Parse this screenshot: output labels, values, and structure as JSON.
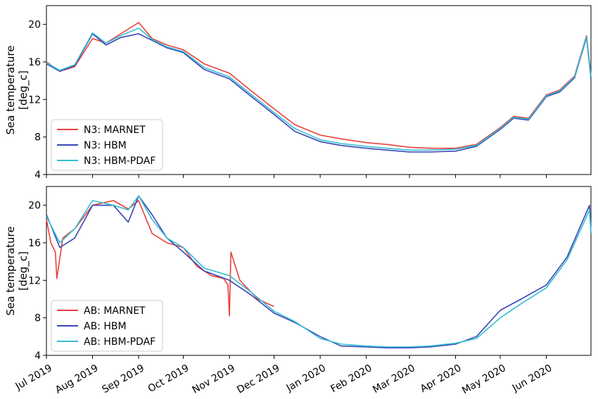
{
  "chart_data": [
    {
      "type": "line",
      "ylabel": [
        "Sea temperature",
        "[deg_c]"
      ],
      "ylim": [
        4,
        22
      ],
      "yticks": [
        4,
        8,
        12,
        16,
        20
      ],
      "xlim": [
        "2019-07-01",
        "2020-07-01"
      ],
      "xticks": [
        "2019-07-01",
        "2019-08-01",
        "2019-09-01",
        "2019-10-01",
        "2019-11-01",
        "2019-12-01",
        "2020-01-01",
        "2020-02-01",
        "2020-03-01",
        "2020-04-01",
        "2020-05-01",
        "2020-06-01"
      ],
      "legend_position": "lower-left",
      "series": [
        {
          "name": "N3: MARNET",
          "color": "#e8413a",
          "x": [
            "2019-07-01",
            "2019-07-10",
            "2019-07-20",
            "2019-08-01",
            "2019-08-10",
            "2019-08-20",
            "2019-09-01",
            "2019-09-10",
            "2019-09-20",
            "2019-10-01",
            "2019-10-15",
            "2019-11-01",
            "2019-11-15",
            "2019-12-01",
            "2019-12-15",
            "2020-01-01",
            "2020-01-15",
            "2020-02-01",
            "2020-02-15",
            "2020-03-01",
            "2020-03-15",
            "2020-04-01",
            "2020-04-15",
            "2020-05-01",
            "2020-05-10",
            "2020-05-20",
            "2020-06-01",
            "2020-06-10",
            "2020-06-20",
            "2020-06-28",
            "2020-07-01"
          ],
          "y": [
            16.0,
            15.0,
            15.5,
            18.5,
            18.0,
            19.0,
            20.2,
            18.5,
            17.8,
            17.3,
            15.8,
            14.8,
            13.0,
            11.0,
            9.3,
            8.2,
            7.8,
            7.4,
            7.2,
            6.9,
            6.8,
            6.8,
            7.2,
            9.0,
            10.2,
            10.0,
            12.5,
            13.0,
            14.5,
            18.8,
            14.5
          ]
        },
        {
          "name": "N3: HBM",
          "color": "#3846b5",
          "x": [
            "2019-07-01",
            "2019-07-10",
            "2019-07-20",
            "2019-08-01",
            "2019-08-10",
            "2019-08-20",
            "2019-09-01",
            "2019-09-10",
            "2019-09-20",
            "2019-10-01",
            "2019-10-15",
            "2019-11-01",
            "2019-11-15",
            "2019-12-01",
            "2019-12-15",
            "2020-01-01",
            "2020-01-15",
            "2020-02-01",
            "2020-02-15",
            "2020-03-01",
            "2020-03-15",
            "2020-04-01",
            "2020-04-15",
            "2020-05-01",
            "2020-05-10",
            "2020-05-20",
            "2020-06-01",
            "2020-06-10",
            "2020-06-20",
            "2020-06-28",
            "2020-07-01"
          ],
          "y": [
            15.8,
            15.0,
            15.6,
            19.0,
            17.8,
            18.6,
            19.0,
            18.3,
            17.5,
            17.0,
            15.2,
            14.2,
            12.4,
            10.4,
            8.6,
            7.5,
            7.1,
            6.8,
            6.6,
            6.4,
            6.4,
            6.5,
            7.0,
            8.8,
            10.0,
            9.8,
            12.3,
            12.8,
            14.3,
            18.6,
            14.2
          ]
        },
        {
          "name": "N3: HBM-PDAF",
          "color": "#36bcd3",
          "x": [
            "2019-07-01",
            "2019-07-10",
            "2019-07-20",
            "2019-08-01",
            "2019-08-10",
            "2019-08-20",
            "2019-09-01",
            "2019-09-10",
            "2019-09-20",
            "2019-10-01",
            "2019-10-15",
            "2019-11-01",
            "2019-11-15",
            "2019-12-01",
            "2019-12-15",
            "2020-01-01",
            "2020-01-15",
            "2020-02-01",
            "2020-02-15",
            "2020-03-01",
            "2020-03-15",
            "2020-04-01",
            "2020-04-15",
            "2020-05-01",
            "2020-05-10",
            "2020-05-20",
            "2020-06-01",
            "2020-06-10",
            "2020-06-20",
            "2020-06-28",
            "2020-07-01"
          ],
          "y": [
            15.9,
            15.1,
            15.7,
            19.1,
            18.0,
            18.8,
            19.6,
            18.4,
            17.6,
            17.1,
            15.4,
            14.4,
            12.6,
            10.6,
            8.9,
            7.7,
            7.3,
            7.0,
            6.8,
            6.6,
            6.6,
            6.7,
            7.1,
            8.9,
            10.1,
            9.9,
            12.4,
            12.9,
            14.4,
            18.7,
            14.4
          ]
        }
      ]
    },
    {
      "type": "line",
      "ylabel": [
        "Sea temperature",
        "[deg_c]"
      ],
      "ylim": [
        4,
        22
      ],
      "yticks": [
        4,
        8,
        12,
        16,
        20
      ],
      "xlim": [
        "2019-07-01",
        "2020-07-01"
      ],
      "xticks": [
        "2019-07-01",
        "2019-08-01",
        "2019-09-01",
        "2019-10-01",
        "2019-11-01",
        "2019-12-01",
        "2020-01-01",
        "2020-02-01",
        "2020-03-01",
        "2020-04-01",
        "2020-05-01",
        "2020-06-01"
      ],
      "xticklabels": [
        "Jul 2019",
        "Aug 2019",
        "Sep 2019",
        "Oct 2019",
        "Nov 2019",
        "Dec 2019",
        "Jan 2020",
        "Feb 2020",
        "Mar 2020",
        "Apr 2020",
        "May 2020",
        "Jun 2020"
      ],
      "legend_position": "lower-left",
      "series": [
        {
          "name": "AB: MARNET",
          "color": "#e8413a",
          "x": [
            "2019-07-01",
            "2019-07-04",
            "2019-07-07",
            "2019-07-08",
            "2019-07-12",
            "2019-07-20",
            "2019-08-01",
            "2019-08-15",
            "2019-08-25",
            "2019-09-01",
            "2019-09-10",
            "2019-09-20",
            "2019-10-01",
            "2019-10-10",
            "2019-10-20",
            "2019-10-28",
            "2019-10-31",
            "2019-11-01",
            "2019-11-02",
            "2019-11-08",
            "2019-11-20",
            "2019-12-01"
          ],
          "y": [
            18.5,
            16.0,
            15.0,
            12.2,
            16.5,
            17.5,
            20.0,
            20.5,
            19.6,
            20.5,
            17.0,
            16.0,
            15.5,
            13.5,
            12.5,
            12.2,
            11.5,
            8.2,
            15.0,
            12.0,
            10.0,
            9.2
          ]
        },
        {
          "name": "AB: HBM",
          "color": "#3846b5",
          "x": [
            "2019-07-01",
            "2019-07-10",
            "2019-07-20",
            "2019-08-01",
            "2019-08-15",
            "2019-08-25",
            "2019-09-01",
            "2019-09-10",
            "2019-09-20",
            "2019-10-01",
            "2019-10-15",
            "2019-11-01",
            "2019-11-15",
            "2019-12-01",
            "2019-12-15",
            "2020-01-01",
            "2020-01-15",
            "2020-02-01",
            "2020-02-15",
            "2020-03-01",
            "2020-03-15",
            "2020-04-01",
            "2020-04-15",
            "2020-05-01",
            "2020-05-15",
            "2020-06-01",
            "2020-06-15",
            "2020-06-30",
            "2020-07-01"
          ],
          "y": [
            19.0,
            15.5,
            16.5,
            20.0,
            20.0,
            18.2,
            21.0,
            19.0,
            16.5,
            15.0,
            13.0,
            12.0,
            10.5,
            8.5,
            7.5,
            6.0,
            5.0,
            4.9,
            4.8,
            4.8,
            4.9,
            5.2,
            6.0,
            8.8,
            10.0,
            11.5,
            14.5,
            20.0,
            17.0
          ]
        },
        {
          "name": "AB: HBM-PDAF",
          "color": "#36bcd3",
          "x": [
            "2019-07-01",
            "2019-07-10",
            "2019-07-20",
            "2019-08-01",
            "2019-08-15",
            "2019-08-25",
            "2019-09-01",
            "2019-09-10",
            "2019-09-20",
            "2019-10-01",
            "2019-10-15",
            "2019-11-01",
            "2019-11-15",
            "2019-12-01",
            "2019-12-15",
            "2020-01-01",
            "2020-01-15",
            "2020-02-01",
            "2020-02-15",
            "2020-03-01",
            "2020-03-15",
            "2020-04-01",
            "2020-04-15",
            "2020-05-01",
            "2020-05-15",
            "2020-06-01",
            "2020-06-15",
            "2020-06-30",
            "2020-07-01"
          ],
          "y": [
            18.8,
            16.0,
            17.5,
            20.5,
            20.0,
            19.5,
            21.0,
            18.5,
            16.5,
            15.5,
            13.3,
            12.5,
            10.8,
            8.7,
            7.6,
            5.8,
            5.2,
            5.0,
            4.9,
            4.9,
            5.0,
            5.3,
            5.8,
            8.0,
            9.5,
            11.2,
            14.2,
            19.5,
            17.0
          ]
        }
      ]
    }
  ]
}
